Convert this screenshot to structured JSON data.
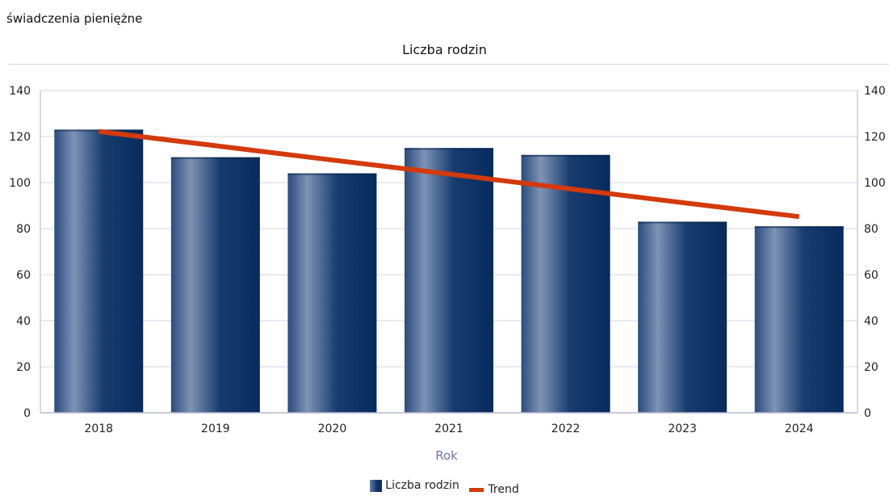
{
  "header": {
    "text": "świadczenia pieniężne"
  },
  "chart_data": {
    "type": "bar",
    "title": "Liczba rodzin",
    "xlabel": "Rok",
    "ylabel": "",
    "categories": [
      "2018",
      "2019",
      "2020",
      "2021",
      "2022",
      "2023",
      "2024"
    ],
    "series": [
      {
        "name": "Liczba rodzin",
        "type": "bar",
        "values": [
          123,
          111,
          104,
          115,
          112,
          83,
          81
        ]
      },
      {
        "name": "Trend",
        "type": "line",
        "values": [
          122.2,
          116.0,
          109.8,
          103.7,
          97.5,
          91.3,
          85.2
        ]
      }
    ],
    "ylim": [
      0,
      140
    ],
    "yticks": [
      0,
      20,
      40,
      60,
      80,
      100,
      120,
      140
    ],
    "secondary_yticks": [
      "0",
      "20",
      "40",
      "60",
      "80",
      "100",
      "120",
      "140"
    ],
    "grid": true,
    "legend_position": "bottom",
    "colors": {
      "bar_dark": "#062b5c",
      "bar_light": "#6d84a8",
      "trend": "#d33a0c",
      "axis_title": "#6b76a8",
      "grid": "#d6d6e0"
    }
  }
}
